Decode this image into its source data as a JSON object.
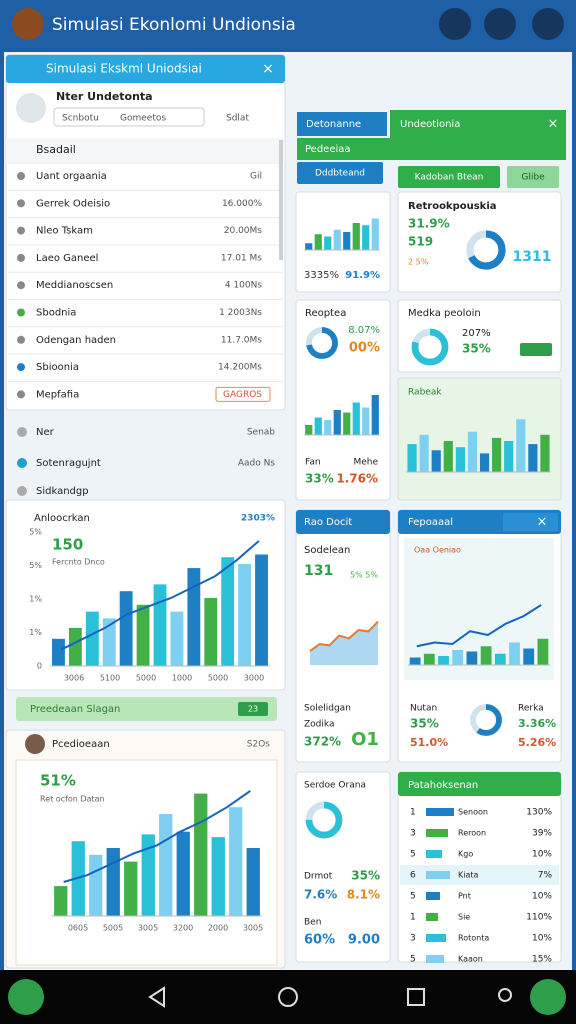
{
  "app_title": "Simulasi Ekonlomi Undionsia",
  "palette": [
    "#1f7fc4",
    "#43b047",
    "#29c0d8",
    "#7fd0f0",
    "#1565c0"
  ],
  "panel": {
    "title": "Simulasi Ekskml Uniodsiai",
    "user": "Nter Undetonta",
    "select_a": "Scnbotu",
    "select_b": "Gomeetos",
    "select_c": "Sdlat",
    "section": "Bsadail",
    "items": [
      {
        "label": "Uant orgaania",
        "value": "Gil"
      },
      {
        "label": "Gerrek Odeisio",
        "value": "16.000%"
      },
      {
        "label": "Nleo Tskam",
        "value": "20.00Ms"
      },
      {
        "label": "Laeo Ganeel",
        "value": "17.01 Ms"
      },
      {
        "label": "Meddianoscsen",
        "value": "4 100Ns"
      },
      {
        "label": "Sbodnia",
        "value": "1 2003Ns"
      },
      {
        "label": "Odengan haden",
        "value": "11.7.0Ms"
      },
      {
        "label": "Sbioonia",
        "value": "14.200Ms"
      },
      {
        "label": "Mepfafia",
        "value": "GAGROS"
      }
    ]
  },
  "filters": [
    {
      "label": "Ner",
      "value": "Senab"
    },
    {
      "label": "Sotenragujnt",
      "value": "Aado Ns"
    },
    {
      "label": "Sidkandgp"
    }
  ],
  "chart1": {
    "title": "Anloocrkan",
    "badge": "2303%",
    "big": "150",
    "sub": "Fercnto Dnco",
    "ylabels": [
      "5%",
      "5%",
      "1%",
      "1%",
      "0"
    ],
    "xlabels": [
      "3006",
      "5100",
      "5000",
      "1000",
      "5000",
      "3000"
    ],
    "bars": [
      20,
      28,
      40,
      35,
      55,
      45,
      60,
      40,
      72,
      50,
      80,
      75,
      82
    ],
    "line": [
      12,
      20,
      28,
      38,
      44,
      50,
      58,
      66,
      78,
      92
    ]
  },
  "banner": {
    "label": "Preedeaan Slagan",
    "button": "23"
  },
  "chart2": {
    "title": "Pcedioeaan",
    "right": "S2Os",
    "big": "51%",
    "sub": "Ret ocfon Datan",
    "xlabels": [
      "0605",
      "5005",
      "3005",
      "3200",
      "2000",
      "3005"
    ],
    "bars": [
      22,
      55,
      45,
      50,
      40,
      60,
      75,
      62,
      90,
      58,
      80,
      50
    ],
    "line": [
      25,
      30,
      38,
      46,
      52,
      62,
      70,
      80,
      92
    ]
  },
  "tabs": {
    "a": "Detonanne",
    "b": "Undeotionia",
    "c": "Pedeeiaa",
    "d": "Dddbteand",
    "e": "Kadoban Btean",
    "f": "Glibe"
  },
  "cardA": {
    "left": "3335%",
    "right": "91.9%",
    "bars": [
      15,
      35,
      30,
      45,
      40,
      60,
      55,
      70
    ]
  },
  "cardB": {
    "title": "Retrookpouskia",
    "v1": "31.9%",
    "v2": "519",
    "v3": "2 5%",
    "v4": "1311",
    "donut": 68
  },
  "cardC": {
    "title": "Reoptea",
    "v1": "8.07%",
    "v2": "00%",
    "donut": 72,
    "t1": "Fan",
    "t2": "Mehe",
    "v3": "33%",
    "v4": "1.76%",
    "bars": [
      20,
      35,
      30,
      50,
      45,
      65,
      55,
      80
    ]
  },
  "cardD": {
    "title": "Medka peoloin",
    "v1": "207%",
    "v2": "35%",
    "donut": 80
  },
  "cardE": {
    "title": "Rabeak",
    "bars": [
      45,
      60,
      35,
      50,
      40,
      65,
      30,
      55,
      50,
      85,
      45,
      60
    ]
  },
  "cardF": {
    "title": "Rao Docit",
    "sub": "Sodelean",
    "big": "131",
    "small": "5% 5%",
    "area": [
      20,
      30,
      28,
      42,
      38,
      50,
      48,
      62
    ],
    "t1": "Solelidgan",
    "t2": "Zodika",
    "v1": "372%",
    "v2": "O1"
  },
  "cardG": {
    "title": "Fepoaaal",
    "sub": "Oaa Oeniao",
    "bars": [
      10,
      15,
      12,
      20,
      18,
      25,
      15,
      30,
      22,
      35
    ],
    "line": [
      25,
      30,
      28,
      45,
      40,
      55,
      65,
      80
    ],
    "t1": "Nutan",
    "v1": "35%",
    "v2": "51.0%",
    "donut": 60,
    "t2": "Rerka",
    "v3": "3.36%",
    "v4": "5.26%"
  },
  "cardH": {
    "title": "Serdoe Orana",
    "donut": 75,
    "t1": "Drmot",
    "v1": "7.6%",
    "v2": "35%",
    "v3": "8.1%",
    "t2": "Ben",
    "v4": "60%",
    "v5": "9.00"
  },
  "cardI": {
    "title": "Patahoksenan",
    "rows": [
      {
        "n": "1",
        "label": "Senoon",
        "value": "130%",
        "bar": 70
      },
      {
        "n": "3",
        "label": "Reroon",
        "value": "39%",
        "bar": 55
      },
      {
        "n": "5",
        "label": "Kgo",
        "value": "10%",
        "bar": 40
      },
      {
        "n": "6",
        "label": "Kiata",
        "value": "7%",
        "bar": 60
      },
      {
        "n": "5",
        "label": "Pnt",
        "value": "10%",
        "bar": 35
      },
      {
        "n": "1",
        "label": "Sie",
        "value": "110%",
        "bar": 30
      },
      {
        "n": "3",
        "label": "Rotonta",
        "value": "10%",
        "bar": 50
      },
      {
        "n": "5",
        "label": "Kaaon",
        "value": "15%",
        "bar": 45
      }
    ]
  }
}
